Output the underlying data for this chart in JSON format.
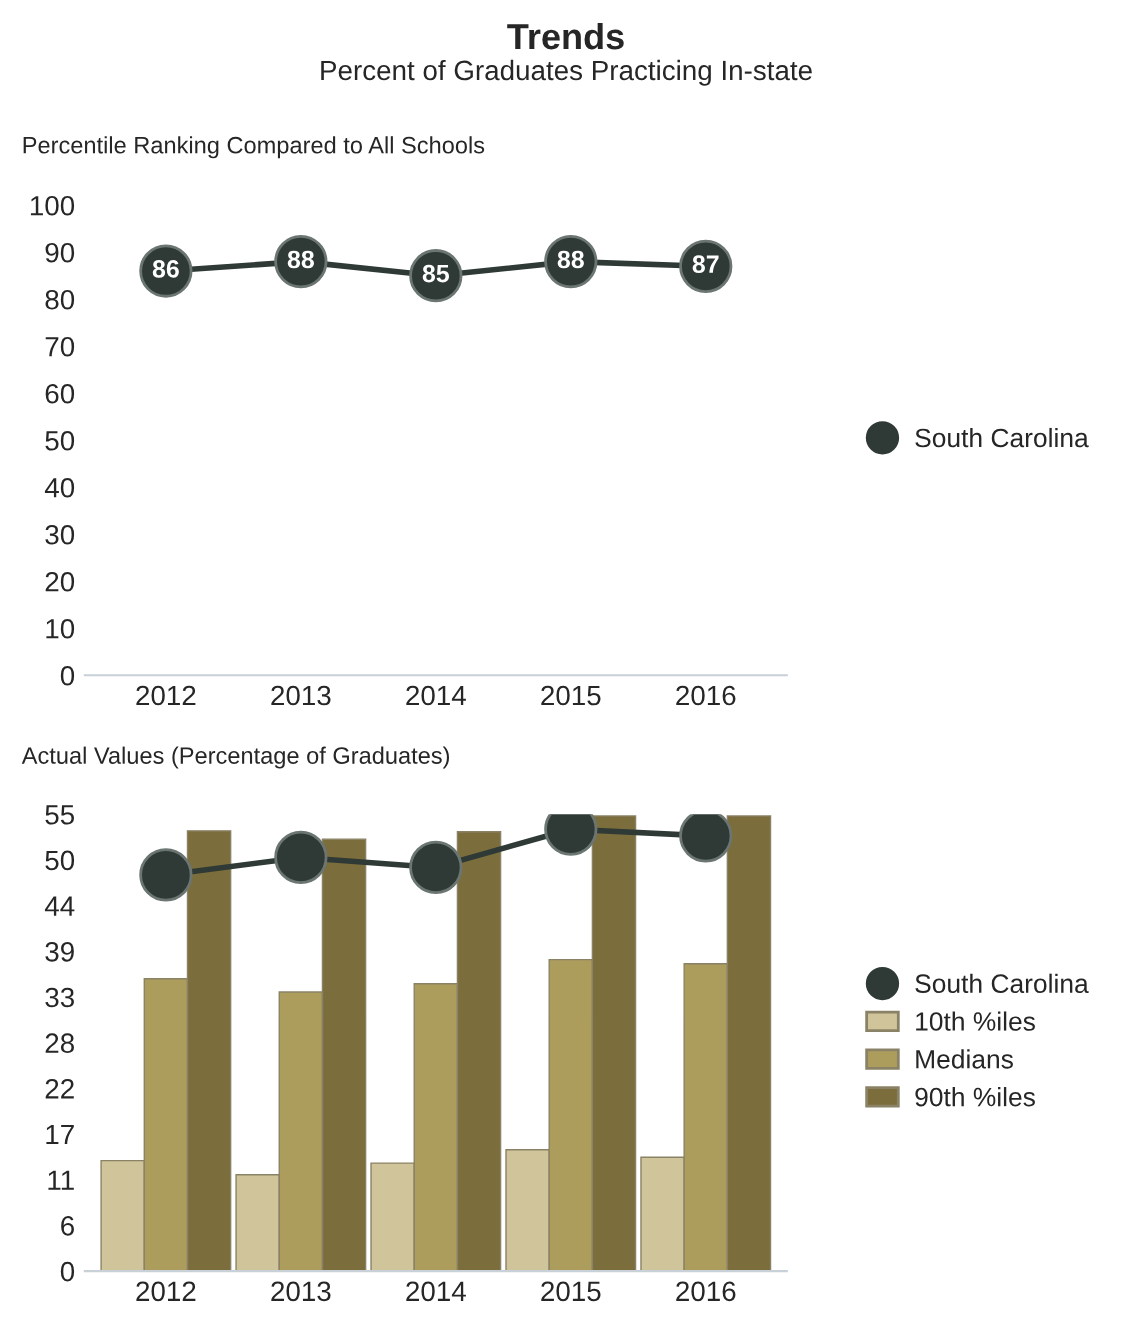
{
  "chart_data": [
    {
      "type": "line",
      "title": "Trends",
      "subtitle": "Percent of Graduates Practicing In-state",
      "ylabel": "Percentile Ranking Compared to All Schools",
      "categories": [
        "2012",
        "2013",
        "2014",
        "2015",
        "2016"
      ],
      "series": [
        {
          "name": "South Carolina",
          "color": "#2f3a36",
          "values": [
            86,
            88,
            85,
            88,
            87
          ]
        }
      ],
      "ylim": [
        0,
        100
      ],
      "yticks": [
        0,
        10,
        20,
        30,
        40,
        50,
        60,
        70,
        80,
        90,
        100
      ],
      "data_labels": true,
      "marker": "circle",
      "legend": "right",
      "grid": false
    },
    {
      "type": "bar",
      "ylabel": "Actual Values (Percentage of Graduates)",
      "categories": [
        "2012",
        "2013",
        "2014",
        "2015",
        "2016"
      ],
      "series": [
        {
          "name": "South Carolina",
          "type": "line",
          "color": "#2f3a36",
          "values": [
            47.7,
            49.8,
            48.6,
            53.2,
            52.4
          ]
        },
        {
          "name": "10th %iles",
          "color": "#cfc49a",
          "values": [
            13.3,
            11.6,
            13.0,
            14.6,
            13.7
          ]
        },
        {
          "name": "Medians",
          "color": "#ad9d5c",
          "values": [
            35.2,
            33.6,
            34.6,
            37.5,
            37.0
          ]
        },
        {
          "name": "90th %iles",
          "color": "#7c6e3c",
          "values": [
            53.0,
            52.0,
            52.9,
            54.8,
            54.8
          ]
        }
      ],
      "ylim": [
        0,
        55
      ],
      "yticks": [
        0,
        {
          "value": 5.5,
          "label": "6"
        },
        {
          "value": 11,
          "label": "11"
        },
        {
          "value": 16.5,
          "label": "17"
        },
        {
          "value": 22,
          "label": "22"
        },
        {
          "value": 27.5,
          "label": "28"
        },
        {
          "value": 33,
          "label": "33"
        },
        {
          "value": 38.5,
          "label": "39"
        },
        {
          "value": 44,
          "label": "44"
        },
        {
          "value": 49.5,
          "label": "50"
        },
        {
          "value": 55,
          "label": "55"
        }
      ],
      "marker": "circle",
      "legend": "right",
      "grid": false
    }
  ]
}
